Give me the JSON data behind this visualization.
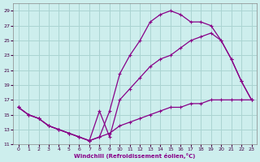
{
  "xlabel": "Windchill (Refroidissement éolien,°C)",
  "bg_color": "#cdeeed",
  "grid_color": "#aad4d2",
  "line_color": "#880088",
  "xlim": [
    -0.5,
    23.5
  ],
  "ylim": [
    11,
    30
  ],
  "yticks": [
    11,
    13,
    15,
    17,
    19,
    21,
    23,
    25,
    27,
    29
  ],
  "xticks": [
    0,
    1,
    2,
    3,
    4,
    5,
    6,
    7,
    8,
    9,
    10,
    11,
    12,
    13,
    14,
    15,
    16,
    17,
    18,
    19,
    20,
    21,
    22,
    23
  ],
  "line1_x": [
    0,
    1,
    2,
    3,
    4,
    5,
    6,
    7,
    8,
    9,
    10,
    11,
    12,
    13,
    14,
    15,
    16,
    17,
    18,
    19,
    20,
    21,
    22,
    23
  ],
  "line1_y": [
    16,
    15,
    14.5,
    13.5,
    13,
    12.5,
    12,
    11.5,
    12,
    12.5,
    13.5,
    14,
    14.5,
    15,
    15.5,
    16,
    16,
    16.5,
    16.5,
    17,
    17,
    17,
    17,
    17
  ],
  "line2_x": [
    0,
    1,
    2,
    3,
    4,
    5,
    6,
    7,
    8,
    9,
    10,
    11,
    12,
    13,
    14,
    15,
    16,
    17,
    18,
    19,
    20,
    21,
    22,
    23
  ],
  "line2_y": [
    16,
    15,
    14.5,
    13.5,
    13,
    12.5,
    12,
    11.5,
    12,
    15.5,
    20.5,
    23,
    25,
    27.5,
    28.5,
    29,
    28.5,
    27.5,
    27.5,
    27,
    25,
    22.5,
    19.5,
    17
  ],
  "line3_x": [
    0,
    1,
    2,
    3,
    4,
    5,
    6,
    7,
    8,
    9,
    10,
    11,
    12,
    13,
    14,
    15,
    16,
    17,
    18,
    19,
    20,
    21,
    22,
    23
  ],
  "line3_y": [
    16,
    15,
    14.5,
    13.5,
    13,
    12.5,
    12,
    11.5,
    15.5,
    12,
    17,
    18.5,
    20,
    21.5,
    22.5,
    23,
    24,
    25,
    25.5,
    26,
    25,
    22.5,
    19.5,
    17
  ]
}
